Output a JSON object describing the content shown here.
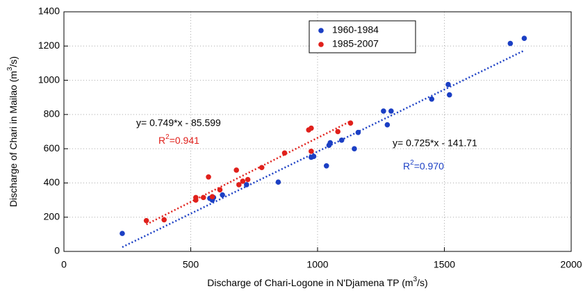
{
  "chart_data": {
    "type": "scatter",
    "xlabel": [
      "Discharge of Chari-Logone in N'Djamena TP (m",
      "3",
      "/s)"
    ],
    "ylabel": [
      "Discharge of Chari in Mailao (m",
      "3",
      "/s)"
    ],
    "xlim": [
      0,
      2000
    ],
    "xticks": [
      0,
      500,
      1000,
      1500,
      2000
    ],
    "ylim": [
      0,
      1400
    ],
    "yticks": [
      0,
      200,
      400,
      600,
      800,
      1000,
      1200,
      1400
    ],
    "grid": true,
    "legend": "top",
    "series": [
      {
        "name": "1960-1984",
        "color": "#1b3fc4",
        "x": [
          230,
          575,
          585,
          590,
          625,
          720,
          845,
          975,
          985,
          1035,
          1045,
          1050,
          1095,
          1145,
          1160,
          1260,
          1275,
          1290,
          1450,
          1515,
          1520,
          1760,
          1815
        ],
        "values": [
          105,
          310,
          300,
          315,
          330,
          390,
          405,
          550,
          555,
          500,
          620,
          635,
          650,
          600,
          695,
          820,
          740,
          820,
          890,
          975,
          915,
          1215,
          1245
        ]
      },
      {
        "name": "1985-2007",
        "color": "#e0201b",
        "x": [
          325,
          395,
          520,
          520,
          550,
          570,
          585,
          615,
          680,
          690,
          705,
          725,
          780,
          870,
          965,
          975,
          975,
          1080,
          1130
        ],
        "values": [
          180,
          185,
          300,
          315,
          315,
          435,
          320,
          360,
          475,
          390,
          410,
          420,
          490,
          575,
          710,
          720,
          585,
          700,
          750
        ]
      }
    ],
    "trendlines": [
      {
        "slope": 0.725,
        "intercept": -141.71,
        "equation": "y= 0.725*x - 141.71",
        "r2": [
          "R",
          "2",
          "=0.970"
        ]
      },
      {
        "slope": 0.749,
        "intercept": -85.599,
        "equation": "y= 0.749*x - 85.599",
        "r2": [
          "R",
          "2",
          "=0.941"
        ]
      }
    ]
  }
}
